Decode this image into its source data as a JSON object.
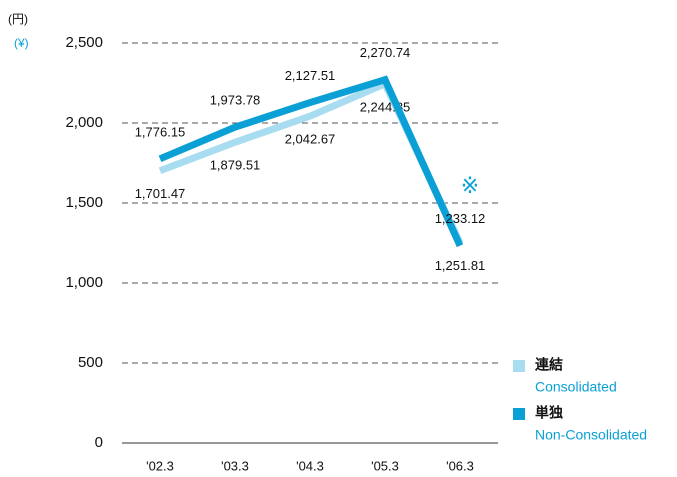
{
  "chart_data": {
    "type": "line",
    "unit_labels": [
      "(円)",
      "(¥)"
    ],
    "annotation": "※",
    "categories": [
      "'02.3",
      "'03.3",
      "'04.3",
      "'05.3",
      "'06.3"
    ],
    "series": [
      {
        "name": "連結",
        "name_en": "Consolidated",
        "color": "#a8dcf0",
        "values": [
          1701.47,
          1879.51,
          2042.67,
          2244.85,
          1251.81
        ],
        "value_labels": [
          "1,701.47",
          "1,879.51",
          "2,042.67",
          "2,244.85",
          "1,251.81"
        ]
      },
      {
        "name": "単独",
        "name_en": "Non-Consolidated",
        "color": "#0aa0d6",
        "values": [
          1776.15,
          1973.78,
          2127.51,
          2270.74,
          1233.12
        ],
        "value_labels": [
          "1,776.15",
          "1,973.78",
          "2,127.51",
          "2,270.74",
          "1,233.12"
        ]
      }
    ],
    "ylim": [
      0,
      2500
    ],
    "yticks": [
      0,
      500,
      {
        "value": 1000,
        "label": "1,000"
      },
      {
        "value": 1500,
        "label": "1,500"
      },
      {
        "value": 2000,
        "label": "2,000"
      },
      {
        "value": 2500,
        "label": "2,500"
      }
    ],
    "grid": true,
    "legend": "right"
  }
}
